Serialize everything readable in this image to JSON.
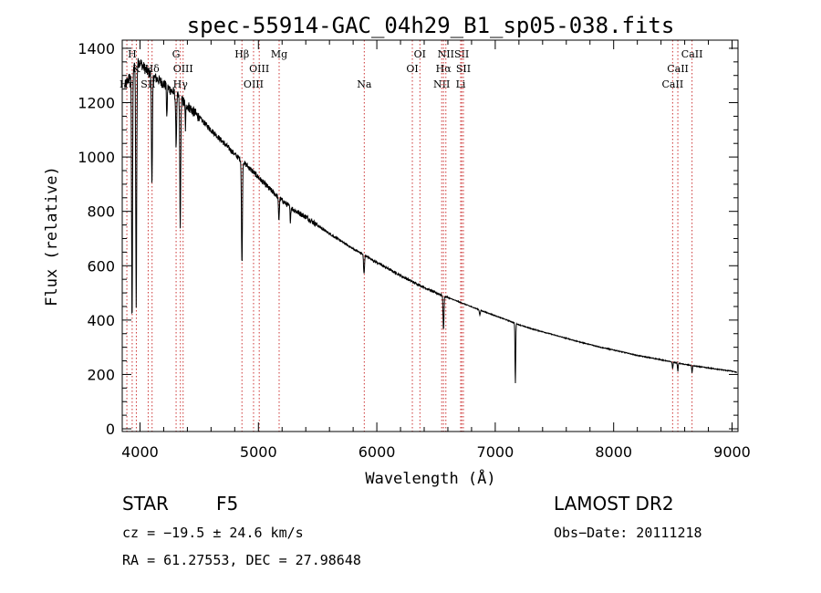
{
  "chart_data": {
    "type": "line",
    "title": "spec-55914-GAC_04h29_B1_sp05-038.fits",
    "xlabel": "Wavelength (Å)",
    "ylabel": "Flux (relative)",
    "xlim": [
      3850,
      9050
    ],
    "ylim": [
      -10,
      1430
    ],
    "xticks": [
      4000,
      5000,
      6000,
      7000,
      8000,
      9000
    ],
    "yticks": [
      0,
      200,
      400,
      600,
      800,
      1000,
      1200,
      1400
    ],
    "grid": false,
    "series": [
      {
        "continuum": [
          [
            3870,
            1260
          ],
          [
            3920,
            1300
          ],
          [
            3960,
            1340
          ],
          [
            4000,
            1350
          ],
          [
            4050,
            1320
          ],
          [
            4100,
            1300
          ],
          [
            4150,
            1285
          ],
          [
            4200,
            1270
          ],
          [
            4250,
            1250
          ],
          [
            4300,
            1230
          ],
          [
            4400,
            1190
          ],
          [
            4500,
            1145
          ],
          [
            4600,
            1100
          ],
          [
            4700,
            1055
          ],
          [
            4800,
            1010
          ],
          [
            4900,
            970
          ],
          [
            5000,
            925
          ],
          [
            5100,
            880
          ],
          [
            5200,
            840
          ],
          [
            5300,
            805
          ],
          [
            5400,
            780
          ],
          [
            5500,
            748
          ],
          [
            5600,
            718
          ],
          [
            5700,
            690
          ],
          [
            5800,
            662
          ],
          [
            5900,
            638
          ],
          [
            6000,
            612
          ],
          [
            6100,
            588
          ],
          [
            6200,
            564
          ],
          [
            6300,
            541
          ],
          [
            6400,
            520
          ],
          [
            6500,
            500
          ],
          [
            6600,
            483
          ],
          [
            6700,
            466
          ],
          [
            6800,
            449
          ],
          [
            6900,
            432
          ],
          [
            7000,
            416
          ],
          [
            7100,
            400
          ],
          [
            7200,
            383
          ],
          [
            7300,
            369
          ],
          [
            7400,
            357
          ],
          [
            7500,
            345
          ],
          [
            7600,
            333
          ],
          [
            7700,
            321
          ],
          [
            7800,
            310
          ],
          [
            7900,
            299
          ],
          [
            8000,
            290
          ],
          [
            8100,
            280
          ],
          [
            8200,
            270
          ],
          [
            8300,
            262
          ],
          [
            8400,
            254
          ],
          [
            8500,
            245
          ],
          [
            8600,
            237
          ],
          [
            8700,
            230
          ],
          [
            8800,
            224
          ],
          [
            8900,
            218
          ],
          [
            9000,
            212
          ],
          [
            9040,
            208
          ]
        ],
        "absorption_lines": [
          {
            "wavelength": 3933,
            "depth": 900,
            "width": 4
          },
          {
            "wavelength": 3968,
            "depth": 880,
            "width": 4
          },
          {
            "wavelength": 4101,
            "depth": 400,
            "width": 4
          },
          {
            "wavelength": 4227,
            "depth": 120,
            "width": 3
          },
          {
            "wavelength": 4305,
            "depth": 180,
            "width": 4
          },
          {
            "wavelength": 4340,
            "depth": 460,
            "width": 4
          },
          {
            "wavelength": 4384,
            "depth": 90,
            "width": 3
          },
          {
            "wavelength": 4861,
            "depth": 380,
            "width": 4
          },
          {
            "wavelength": 5173,
            "depth": 80,
            "width": 4
          },
          {
            "wavelength": 5270,
            "depth": 50,
            "width": 3
          },
          {
            "wavelength": 5892,
            "depth": 70,
            "width": 4
          },
          {
            "wavelength": 6563,
            "depth": 120,
            "width": 4
          },
          {
            "wavelength": 6870,
            "depth": 18,
            "width": 4
          },
          {
            "wavelength": 7170,
            "depth": 220,
            "width": 3
          },
          {
            "wavelength": 8498,
            "depth": 24,
            "width": 3
          },
          {
            "wavelength": 8542,
            "depth": 30,
            "width": 3
          },
          {
            "wavelength": 8662,
            "depth": 26,
            "width": 3
          }
        ]
      }
    ],
    "line_markers": [
      {
        "label": "Hη",
        "wavelength": 3889,
        "row": 1
      },
      {
        "label": "H",
        "wavelength": 3934,
        "row": 3
      },
      {
        "label": "K",
        "wavelength": 3969,
        "row": 2
      },
      {
        "label": "Hδ",
        "wavelength": 4102,
        "row": 2
      },
      {
        "label": "SII",
        "wavelength": 4069,
        "row": 1
      },
      {
        "label": "G",
        "wavelength": 4305,
        "row": 3
      },
      {
        "label": "OIII",
        "wavelength": 4364,
        "row": 2
      },
      {
        "label": "Hγ",
        "wavelength": 4341,
        "row": 1
      },
      {
        "label": "Hβ",
        "wavelength": 4861,
        "row": 3
      },
      {
        "label": "OIII",
        "wavelength": 5007,
        "row": 2
      },
      {
        "label": "OIII",
        "wavelength": 4959,
        "row": 1
      },
      {
        "label": "Mg",
        "wavelength": 5175,
        "row": 3
      },
      {
        "label": "Na",
        "wavelength": 5894,
        "row": 1
      },
      {
        "label": "OI",
        "wavelength": 6364,
        "row": 3
      },
      {
        "label": "OI",
        "wavelength": 6300,
        "row": 2
      },
      {
        "label": "NII",
        "wavelength": 6548,
        "row": 1
      },
      {
        "label": "Hα",
        "wavelength": 6563,
        "row": 2
      },
      {
        "label": "NII",
        "wavelength": 6583,
        "row": 3
      },
      {
        "label": "SII",
        "wavelength": 6717,
        "row": 3
      },
      {
        "label": "SII",
        "wavelength": 6731,
        "row": 2
      },
      {
        "label": "Li",
        "wavelength": 6708,
        "row": 1
      },
      {
        "label": "CaII",
        "wavelength": 8662,
        "row": 3
      },
      {
        "label": "CaII",
        "wavelength": 8542,
        "row": 2
      },
      {
        "label": "CaII",
        "wavelength": 8498,
        "row": 1
      }
    ]
  },
  "info": {
    "object_class": "STAR",
    "subclass": "F5",
    "survey": "LAMOST DR2",
    "cz": "cz = −19.5 ± 24.6 km/s",
    "obs_date": "Obs−Date: 20111218",
    "coords": "RA =  61.27553, DEC =  27.98648"
  }
}
